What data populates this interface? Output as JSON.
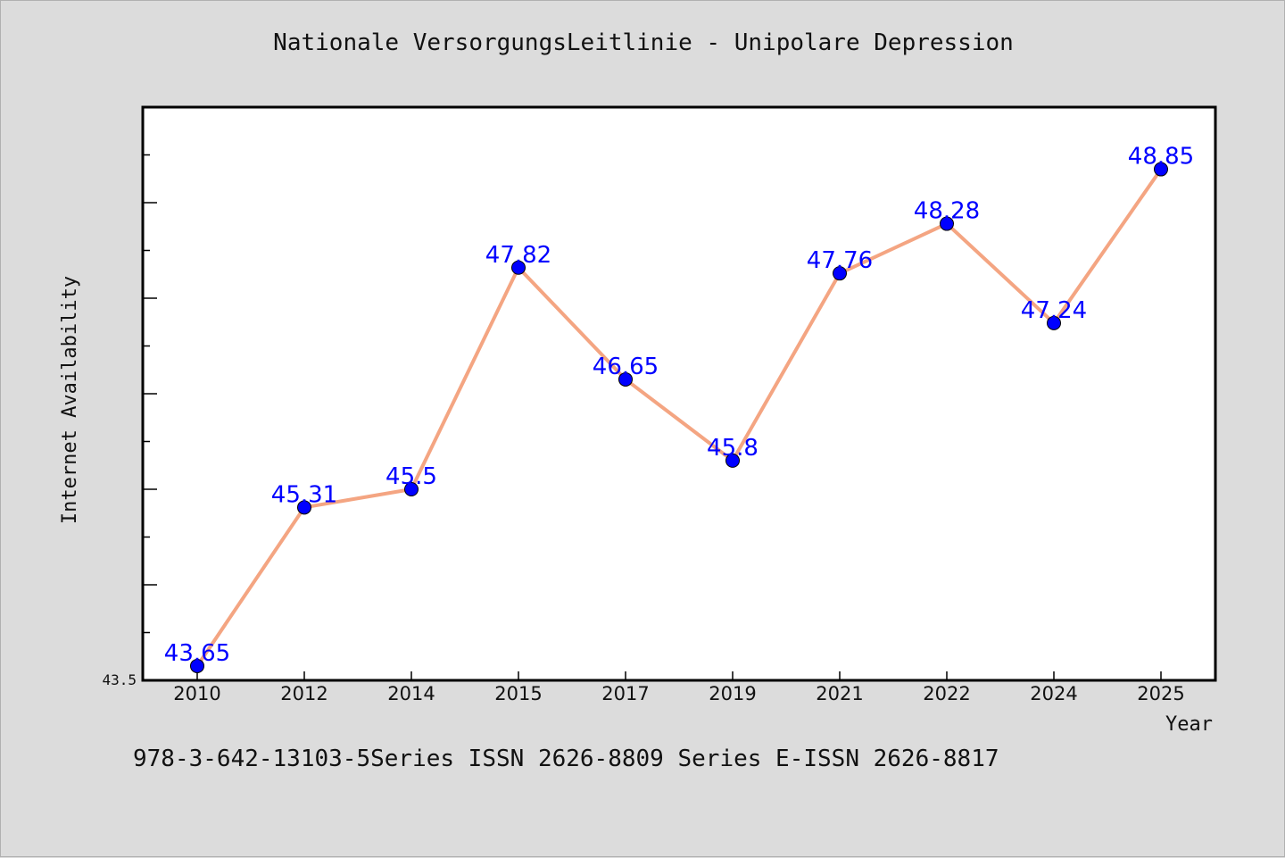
{
  "chart_data": {
    "type": "line",
    "title": "Nationale VersorgungsLeitlinie - Unipolare Depression",
    "xlabel": "Year",
    "ylabel": "Internet Availability",
    "categories": [
      "2010",
      "2012",
      "2014",
      "2015",
      "2017",
      "2019",
      "2021",
      "2022",
      "2024",
      "2025"
    ],
    "series": [
      {
        "values": [
          43.65,
          45.31,
          45.5,
          47.82,
          46.65,
          45.8,
          47.76,
          48.28,
          47.24,
          48.85
        ],
        "data_labels": [
          "43.65",
          "45.31",
          "45.5",
          "47.82",
          "46.65",
          "45.8",
          "47.76",
          "48.28",
          "47.24",
          "48.85"
        ]
      }
    ],
    "ylim": [
      43.5,
      49.5
    ],
    "y_tick_label": "43.5",
    "y_minor_step": 0.5,
    "grid": false,
    "line_color": "#f4a582",
    "marker_color": "#0000ff",
    "label_color": "#0000ff"
  },
  "footnote": "978-3-642-13103-5Series ISSN 2626-8809 Series E-ISSN 2626-8817"
}
